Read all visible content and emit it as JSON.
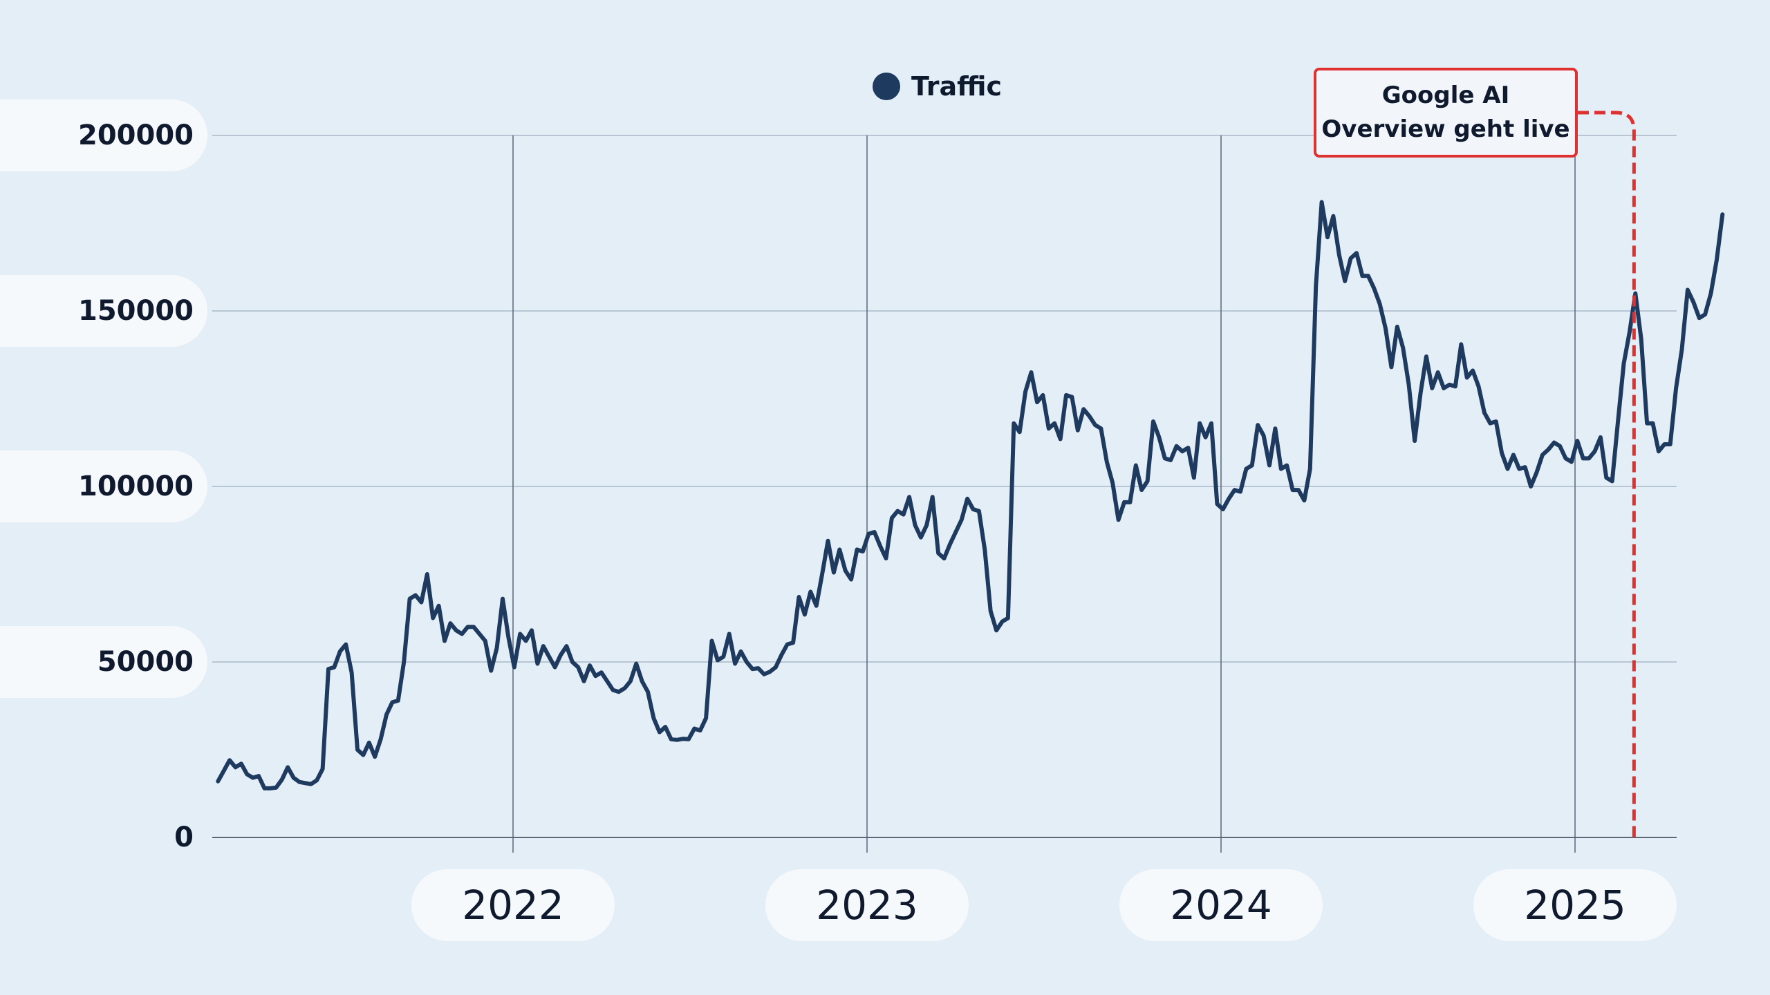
{
  "chart_data": {
    "type": "line",
    "legend": "Traffic",
    "x_tick_labels": [
      "2022",
      "2023",
      "2024",
      "2025"
    ],
    "y_tick_labels": [
      "0",
      "50000",
      "100000",
      "150000",
      "200000"
    ],
    "ylim": [
      0,
      200000
    ],
    "x_start": "2021-03",
    "x_end": "2025-06",
    "annotation": "Google AI\nOverview geht live",
    "annotation_x": "2025-03",
    "colors": {
      "line": "#1f3a5f",
      "annotation": "#e03131",
      "grid": "#aab7c6",
      "background": "#e4eef7"
    },
    "series": [
      {
        "name": "Traffic",
        "values": [
          16000,
          19000,
          22000,
          20000,
          21000,
          18000,
          17000,
          17500,
          14000,
          14000,
          14200,
          16500,
          20000,
          17000,
          15800,
          15500,
          15200,
          16300,
          19500,
          48000,
          48500,
          53000,
          55000,
          47000,
          25000,
          23500,
          27000,
          23000,
          28000,
          35000,
          38500,
          39000,
          50000,
          68000,
          69000,
          67000,
          75000,
          62500,
          66000,
          56000,
          61000,
          59000,
          58000,
          60000,
          60000,
          58000,
          56000,
          47500,
          54000,
          68000,
          57000,
          48500,
          58000,
          56000,
          59000,
          49500,
          54500,
          51500,
          48500,
          52000,
          54500,
          50000,
          48500,
          44500,
          49000,
          46000,
          47000,
          44500,
          42000,
          41500,
          42500,
          44500,
          49500,
          44500,
          41500,
          34000,
          30000,
          31500,
          28000,
          27800,
          28100,
          28000,
          31000,
          30500,
          34000,
          56000,
          50500,
          51500,
          58000,
          49500,
          53000,
          50000,
          48000,
          48200,
          46500,
          47200,
          48500,
          52000,
          55000,
          55500,
          68500,
          63500,
          70000,
          66000,
          75000,
          84500,
          75500,
          82000,
          76000,
          73500,
          82000,
          81500,
          86500,
          87000,
          83000,
          79500,
          91000,
          93000,
          92000,
          97000,
          89000,
          85500,
          89000,
          97000,
          81000,
          79500,
          83500,
          87000,
          90500,
          96500,
          93500,
          93000,
          82000,
          64500,
          59000,
          61500,
          62500,
          118000,
          115500,
          127000,
          132500,
          124000,
          126000,
          116500,
          118000,
          113500,
          126000,
          125500,
          116000,
          122000,
          120000,
          117500,
          116500,
          107000,
          101000,
          90500,
          95500,
          95500,
          106000,
          99000,
          101500,
          118500,
          114000,
          108000,
          107500,
          111500,
          110000,
          111000,
          102500,
          118000,
          114000,
          118000,
          95000,
          93500,
          96500,
          99000,
          98500,
          105000,
          106000,
          117500,
          114500,
          106000,
          116500,
          105000,
          106000,
          99000,
          99000,
          96000,
          105000,
          157000,
          181000,
          171000,
          177000,
          166000,
          158500,
          165000,
          166500,
          160000,
          160000,
          156500,
          152000,
          145000,
          134000,
          145500,
          139500,
          129000,
          113000,
          126500,
          137000,
          128000,
          132500,
          128000,
          129000,
          128500,
          140500,
          131000,
          133000,
          128500,
          121000,
          118000,
          118500,
          109500,
          105000,
          109000,
          105000,
          105500,
          100000,
          104000,
          109000,
          110500,
          112500,
          111500,
          108000,
          107000,
          113000,
          108000,
          108000,
          110000,
          114000,
          102500,
          101500,
          118500,
          135000,
          144000,
          155000,
          142000,
          118000,
          118000,
          110000,
          112000,
          112000,
          128000,
          139000,
          156000,
          152500,
          148000,
          149000,
          155000,
          164500,
          177500
        ]
      }
    ]
  }
}
